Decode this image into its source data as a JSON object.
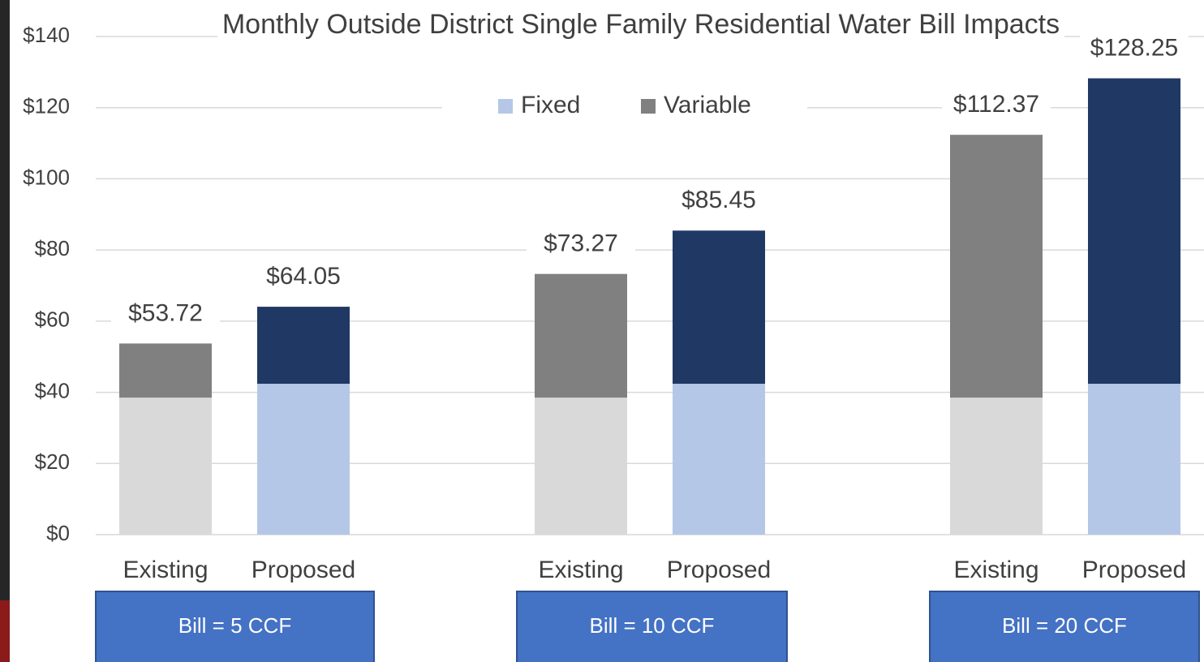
{
  "chart_data": {
    "type": "stacked_bar",
    "title": "Monthly Outside District Single Family Residential Water Bill Impacts",
    "categories": [
      "Existing",
      "Proposed",
      "Existing",
      "Proposed",
      "Existing",
      "Proposed"
    ],
    "groups": [
      "Bill = 5 CCF",
      "Bill = 10 CCF",
      "Bill = 20 CCF"
    ],
    "group_color": "#4472c4",
    "series": [
      {
        "name": "Fixed",
        "color": "#b4c7e7",
        "bar_colors": [
          "#d9d9d9",
          "#b4c7e7",
          "#d9d9d9",
          "#b4c7e7",
          "#d9d9d9",
          "#b4c7e7"
        ],
        "values": [
          38.5,
          42.4,
          38.5,
          42.4,
          38.5,
          42.4
        ]
      },
      {
        "name": "Variable",
        "color": "#808080",
        "bar_colors": [
          "#808080",
          "#203864",
          "#808080",
          "#203864",
          "#808080",
          "#203864"
        ],
        "values": [
          15.22,
          21.65,
          34.77,
          43.05,
          73.87,
          85.85
        ]
      }
    ],
    "totals": [
      53.72,
      64.05,
      73.27,
      85.45,
      112.37,
      128.25
    ],
    "total_labels": [
      "$53.72",
      "$64.05",
      "$73.27",
      "$85.45",
      "$112.37",
      "$128.25"
    ],
    "ylim": [
      0,
      140
    ],
    "yticks": [
      {
        "value": 0,
        "label": "$0"
      },
      {
        "value": 20,
        "label": "$20"
      },
      {
        "value": 40,
        "label": "$40"
      },
      {
        "value": 60,
        "label": "$60"
      },
      {
        "value": 80,
        "label": "$80"
      },
      {
        "value": 100,
        "label": "$100"
      },
      {
        "value": 120,
        "label": "$120"
      },
      {
        "value": 140,
        "label": "$140"
      }
    ],
    "grid": true,
    "legend": "top"
  }
}
